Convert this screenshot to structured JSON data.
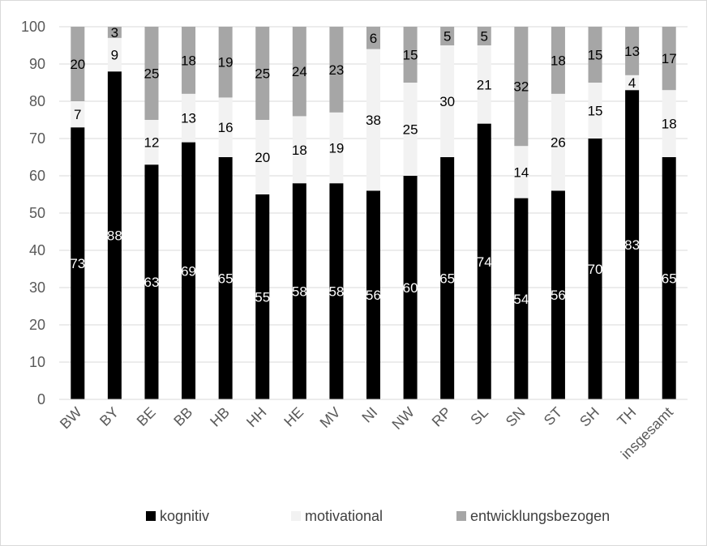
{
  "chart_data": {
    "type": "bar",
    "stacked": true,
    "categories": [
      "BW",
      "BY",
      "BE",
      "BB",
      "HB",
      "HH",
      "HE",
      "MV",
      "NI",
      "NW",
      "RP",
      "SL",
      "SN",
      "ST",
      "SH",
      "TH",
      "insgesamt"
    ],
    "series": [
      {
        "name": "kognitiv",
        "color": "#000000",
        "label_color": "#ffffff",
        "values": [
          73,
          88,
          63,
          69,
          65,
          55,
          58,
          58,
          56,
          60,
          65,
          74,
          54,
          56,
          70,
          83,
          65
        ]
      },
      {
        "name": "motivational",
        "color": "#f2f2f2",
        "label_color": "#000000",
        "values": [
          7,
          9,
          12,
          13,
          16,
          20,
          18,
          19,
          38,
          25,
          30,
          21,
          14,
          26,
          15,
          4,
          18
        ]
      },
      {
        "name": "entwicklungsbezogen",
        "color": "#a6a6a6",
        "label_color": "#000000",
        "values": [
          20,
          3,
          25,
          18,
          19,
          25,
          24,
          23,
          6,
          15,
          5,
          5,
          32,
          18,
          15,
          13,
          17
        ]
      }
    ],
    "ylim": [
      0,
      100
    ],
    "yticks": [
      0,
      10,
      20,
      30,
      40,
      50,
      60,
      70,
      80,
      90,
      100
    ],
    "grid": true,
    "legend_position": "bottom",
    "xlabel": "",
    "ylabel": "",
    "title": ""
  }
}
